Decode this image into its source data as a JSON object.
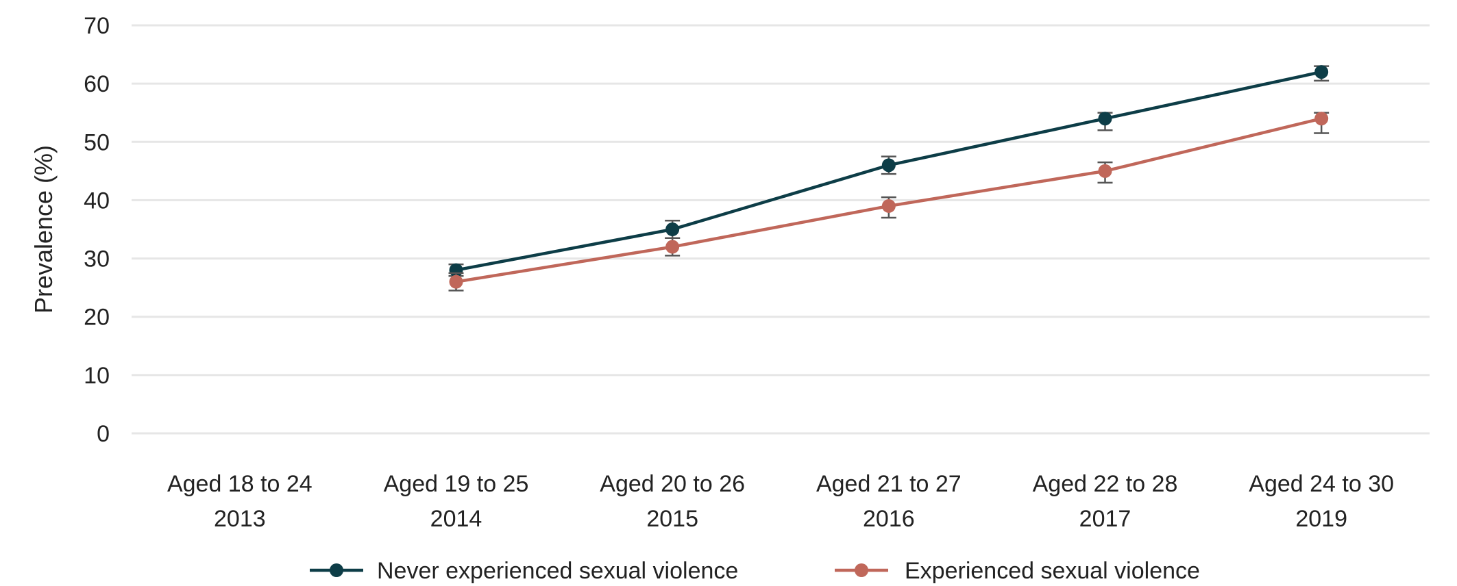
{
  "chart_data": {
    "type": "line",
    "title": "",
    "xlabel": "",
    "ylabel": "Prevalence (%)",
    "ylim": [
      0,
      70
    ],
    "yticks": [
      "0",
      "10",
      "20",
      "30",
      "40",
      "50",
      "60",
      "70"
    ],
    "grid": true,
    "legend_position": "bottom",
    "categories": [
      {
        "line1": "Aged 18 to 24",
        "line2": "2013"
      },
      {
        "line1": "Aged 19 to 25",
        "line2": "2014"
      },
      {
        "line1": "Aged 20 to 26",
        "line2": "2015"
      },
      {
        "line1": "Aged 21 to 27",
        "line2": "2016"
      },
      {
        "line1": "Aged 22 to 28",
        "line2": "2017"
      },
      {
        "line1": "Aged 24 to 30",
        "line2": "2019"
      }
    ],
    "series": [
      {
        "name": "Never experienced sexual violence",
        "color": "#0d3d47",
        "values": [
          null,
          28,
          35,
          46,
          54,
          62
        ],
        "error_low": [
          null,
          27,
          33.5,
          44.5,
          52,
          60.5
        ],
        "error_high": [
          null,
          29,
          36.5,
          47.5,
          55,
          63
        ]
      },
      {
        "name": "Experienced sexual violence",
        "color": "#c0675a",
        "values": [
          null,
          26,
          32,
          39,
          45,
          54
        ],
        "error_low": [
          null,
          24.5,
          30.5,
          37,
          43,
          51.5
        ],
        "error_high": [
          null,
          27.5,
          33.5,
          40.5,
          46.5,
          55
        ]
      }
    ]
  }
}
